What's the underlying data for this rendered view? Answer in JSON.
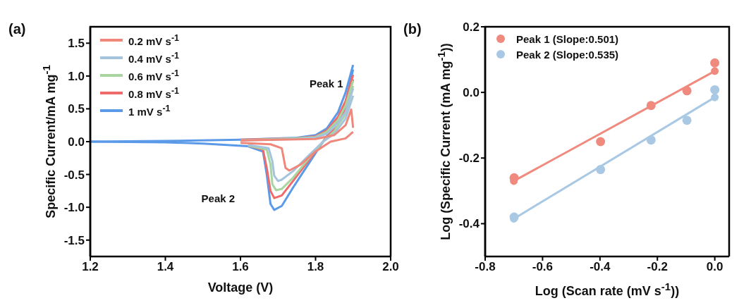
{
  "chart_data": [
    {
      "type": "line",
      "xlabel": "Voltage (V)",
      "ylabel": "Specific Current/mA mg$^{-1}$",
      "xlim": [
        1.2,
        2.0
      ],
      "ylim": [
        -1.75,
        1.75
      ],
      "xticks": [
        {
          "value": 1.2,
          "label": "1.2"
        },
        {
          "value": 1.4,
          "label": "1.4"
        },
        {
          "value": 1.6,
          "label": "1.6"
        },
        {
          "value": 1.8,
          "label": "1.8"
        },
        {
          "value": 2.0,
          "label": "2.0"
        }
      ],
      "yticks": [
        {
          "value": 1.5,
          "label": "1.5"
        },
        {
          "value": 1,
          "label": "1.0"
        },
        {
          "value": 0.5,
          "label": "0.5"
        },
        {
          "value": 0,
          "label": "0.0"
        },
        {
          "value": -0.5,
          "label": "-0.5"
        },
        {
          "value": -1,
          "label": "-1.0"
        },
        {
          "value": -1.5,
          "label": "-1.5"
        }
      ],
      "grid": false,
      "legend": "top left",
      "marker": "none",
      "line_style": "solid",
      "annotations": [
        "(a)",
        "Peak 1",
        "Peak 2"
      ],
      "series": [
        {
          "name": "0.2 mV s$^{-1}$",
          "color": "#f0877a",
          "x": [
            1.6,
            1.8,
            1.85,
            1.88,
            1.895,
            1.9
          ],
          "values": [
            0.02,
            0.04,
            0.1,
            0.25,
            0.49,
            0.21
          ]
        },
        {
          "name": "0.4 mV s$^{-1}$",
          "color": "#a3c4dc",
          "x": [
            1.6,
            1.75,
            1.8,
            1.83,
            1.86,
            1.88,
            1.9
          ],
          "values": [
            0.02,
            0.04,
            0.06,
            0.12,
            0.28,
            0.45,
            0.81
          ]
        },
        {
          "name": "0.6 mV s$^{-1}$",
          "color": "#a8d5a0",
          "x": [
            1.6,
            1.75,
            1.8,
            1.83,
            1.86,
            1.88,
            1.9
          ],
          "values": [
            0.02,
            0.05,
            0.07,
            0.15,
            0.33,
            0.55,
            0.93
          ]
        },
        {
          "name": "0.8 mV s$^{-1}$",
          "color": "#ef6b6b",
          "x": [
            1.6,
            1.75,
            1.8,
            1.83,
            1.86,
            1.88,
            1.9
          ],
          "values": [
            0.03,
            0.05,
            0.08,
            0.17,
            0.38,
            0.62,
            1.02
          ]
        },
        {
          "color": "#f0877a",
          "x": [
            1.9,
            1.88,
            1.84,
            1.8,
            1.76,
            1.73,
            1.72,
            1.71,
            1.68,
            1.6
          ],
          "values": [
            0.15,
            0.05,
            0,
            -0.15,
            -0.35,
            -0.44,
            -0.4,
            -0.1,
            -0.04,
            -0.02
          ]
        },
        {
          "color": "#a3c4dc",
          "x": [
            1.9,
            1.88,
            1.85,
            1.82,
            1.78,
            1.74,
            1.71,
            1.7,
            1.69,
            1.685,
            1.675,
            1.62
          ],
          "values": [
            0.7,
            0.35,
            0.12,
            0,
            -0.22,
            -0.45,
            -0.58,
            -0.6,
            -0.52,
            -0.3,
            -0.1,
            -0.05
          ]
        },
        {
          "color": "#a8d5a0",
          "x": [
            1.9,
            1.88,
            1.85,
            1.82,
            1.78,
            1.74,
            1.71,
            1.695,
            1.685,
            1.68,
            1.67,
            1.62
          ],
          "values": [
            0.85,
            0.42,
            0.16,
            0,
            -0.27,
            -0.55,
            -0.72,
            -0.74,
            -0.65,
            -0.35,
            -0.12,
            -0.06
          ]
        },
        {
          "color": "#ef6b6b",
          "x": [
            1.9,
            1.88,
            1.85,
            1.82,
            1.78,
            1.74,
            1.71,
            1.69,
            1.68,
            1.67,
            1.66,
            1.62
          ],
          "values": [
            0.95,
            0.5,
            0.2,
            0,
            -0.3,
            -0.6,
            -0.82,
            -0.86,
            -0.75,
            -0.4,
            -0.12,
            -0.06
          ]
        },
        {
          "name": "1 mV s$^{-1}$",
          "color": "#5b9ae8",
          "x": [
            1.2,
            1.4,
            1.6,
            1.75,
            1.8,
            1.83,
            1.86,
            1.88,
            1.9
          ],
          "values": [
            0,
            0.01,
            0.03,
            0.06,
            0.1,
            0.2,
            0.45,
            0.75,
            1.17
          ]
        },
        {
          "color": "#5b9ae8",
          "x": [
            1.9,
            1.88,
            1.85,
            1.82,
            1.78,
            1.74,
            1.71,
            1.69,
            1.68,
            1.67,
            1.66,
            1.62,
            1.5,
            1.4,
            1.2
          ],
          "values": [
            1.1,
            0.6,
            0.25,
            0,
            -0.35,
            -0.7,
            -0.98,
            -1.04,
            -0.95,
            -0.5,
            -0.15,
            -0.07,
            -0.03,
            -0.01,
            0
          ]
        }
      ]
    },
    {
      "type": "scatter",
      "xlabel": "Log (Scan rate (mV s$^{-1}$))",
      "ylabel": "Log (Specific Current (mA mg$^{-1}$))",
      "xlim": [
        -0.8,
        0.05
      ],
      "ylim": [
        -0.5,
        0.2
      ],
      "xticks": [
        {
          "value": -0.8,
          "label": "-0.8"
        },
        {
          "value": -0.6,
          "label": "-0.6"
        },
        {
          "value": -0.4,
          "label": "-0.4"
        },
        {
          "value": -0.2,
          "label": "-0.2"
        },
        {
          "value": 0,
          "label": "0.0"
        }
      ],
      "yticks": [
        {
          "value": 0.2,
          "label": "0.2"
        },
        {
          "value": 0,
          "label": "0.0"
        },
        {
          "value": -0.2,
          "label": "-0.2"
        },
        {
          "value": -0.4,
          "label": "-0.4"
        }
      ],
      "grid": false,
      "legend": "top left",
      "marker": "circle",
      "annotations": [
        "(b)"
      ],
      "x": [
        -0.699,
        -0.398,
        -0.222,
        -0.097,
        0
      ],
      "series": [
        {
          "name": "Peak 1 (Slope:0.501)",
          "color": "#f08a7e",
          "values": [
            -0.26,
            -0.15,
            -0.04,
            0.005,
            0.09
          ]
        },
        {
          "name": "Peak 2 (Slope:0.535)",
          "color": "#a8c8e4",
          "values": [
            -0.38,
            -0.235,
            -0.145,
            -0.085,
            0.008
          ]
        },
        {
          "type": "line",
          "color": "#f08a7e",
          "x": [
            -0.7,
            0
          ],
          "values": [
            -0.27,
            0.065
          ]
        },
        {
          "type": "line",
          "color": "#a8c8e4",
          "x": [
            -0.7,
            0
          ],
          "values": [
            -0.385,
            -0.015
          ]
        }
      ]
    }
  ]
}
